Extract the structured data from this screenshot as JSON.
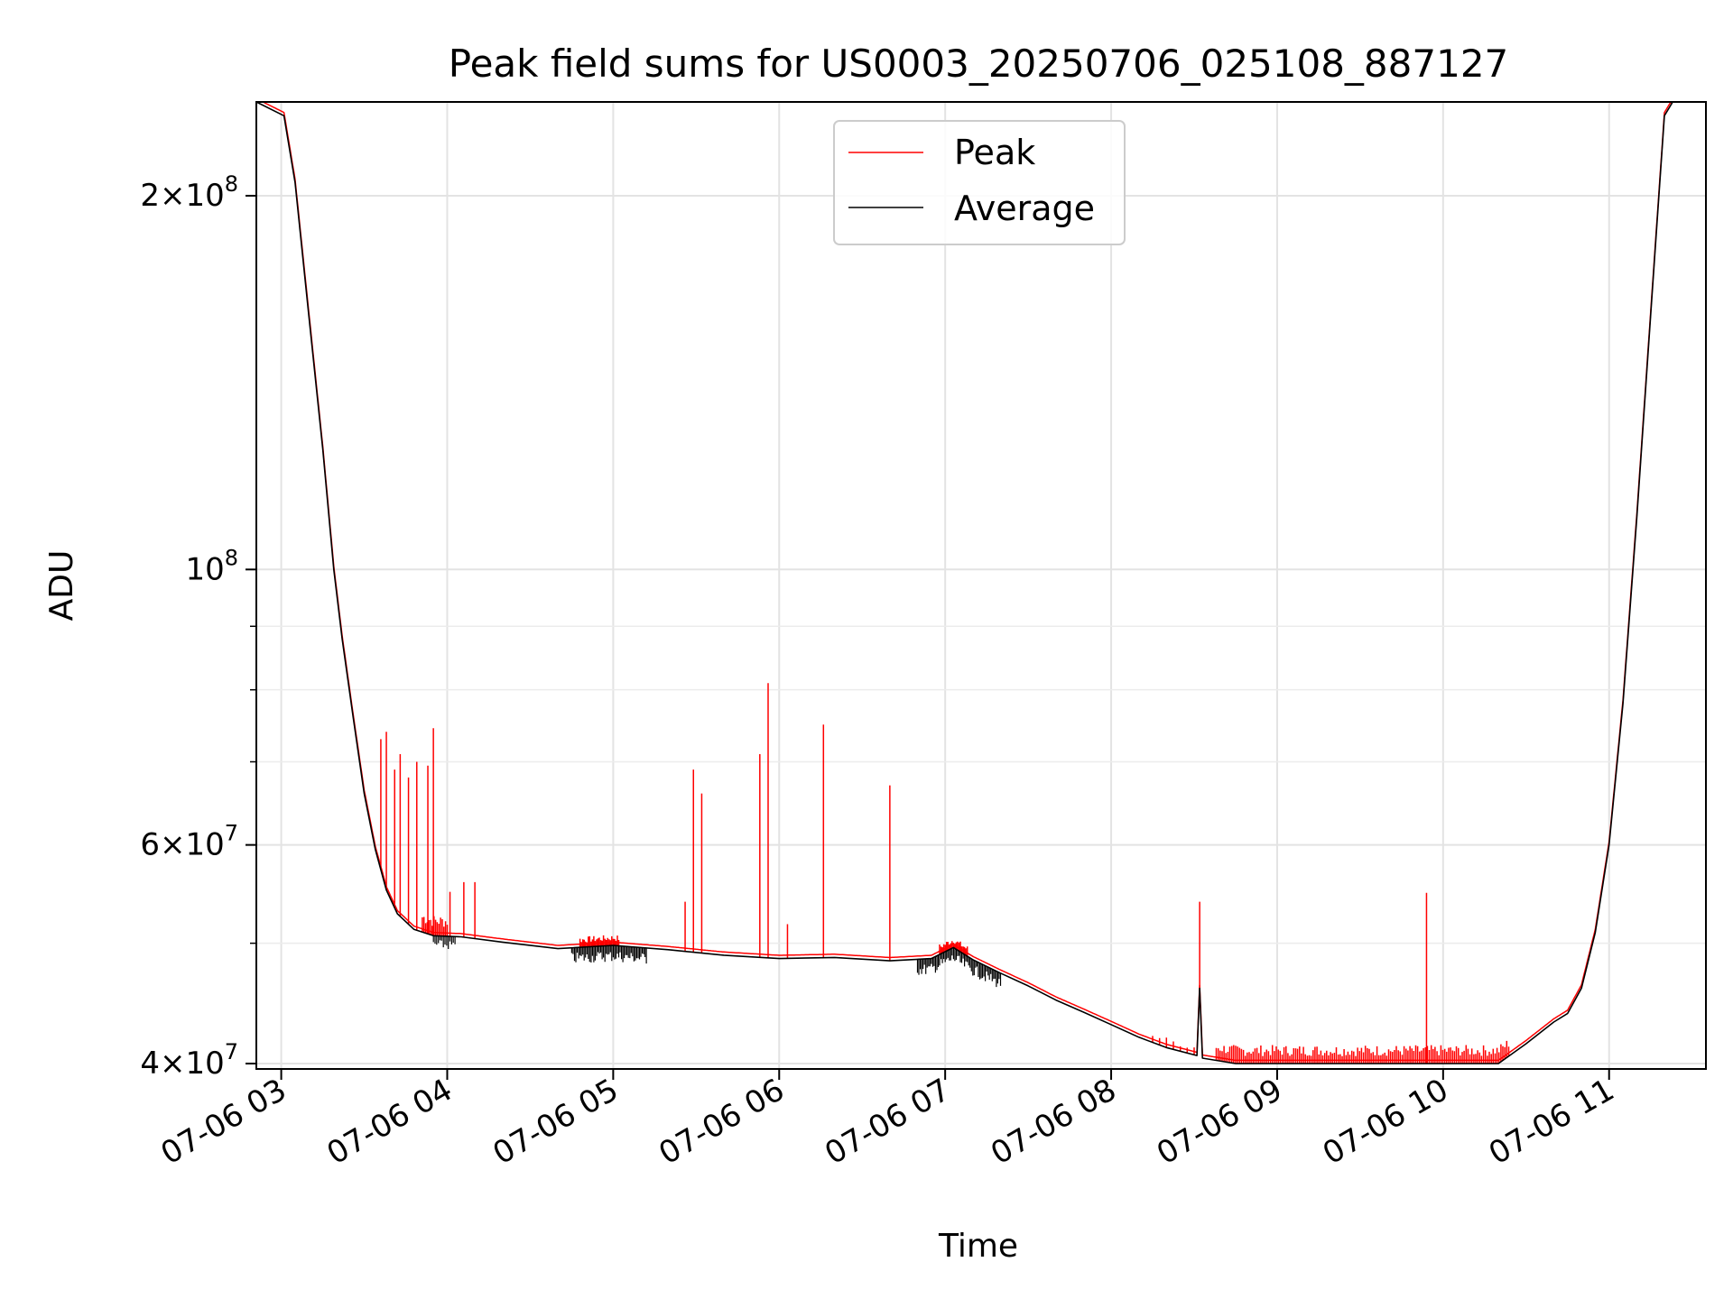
{
  "chart_data": {
    "type": "line",
    "title": "Peak field sums for US0003_20250706_025108_887127",
    "xlabel": "Time",
    "ylabel": "ADU",
    "yscale": "log",
    "xlim": [
      "07-06 02:51",
      "07-06 11:35"
    ],
    "ylim": [
      39600000,
      238000000
    ],
    "grid": true,
    "legend": {
      "placement": "upper-center",
      "entries": [
        {
          "label": "Peak",
          "color": "#ff0000"
        },
        {
          "label": "Average",
          "color": "#000000"
        }
      ]
    },
    "x_ticks": [
      {
        "value": "07-06 03:00",
        "label": "07-06 03"
      },
      {
        "value": "07-06 04:00",
        "label": "07-06 04"
      },
      {
        "value": "07-06 05:00",
        "label": "07-06 05"
      },
      {
        "value": "07-06 06:00",
        "label": "07-06 06"
      },
      {
        "value": "07-06 07:00",
        "label": "07-06 07"
      },
      {
        "value": "07-06 08:00",
        "label": "07-06 08"
      },
      {
        "value": "07-06 09:00",
        "label": "07-06 09"
      },
      {
        "value": "07-06 10:00",
        "label": "07-06 10"
      },
      {
        "value": "07-06 11:00",
        "label": "07-06 11"
      }
    ],
    "y_major_ticks": [
      {
        "value": 40000000,
        "mantissa": "4",
        "exponent": "7"
      },
      {
        "value": 60000000,
        "mantissa": "6",
        "exponent": "7"
      },
      {
        "value": 100000000,
        "mantissa": "",
        "exponent": "8"
      },
      {
        "value": 200000000,
        "mantissa": "2",
        "exponent": "8"
      }
    ],
    "y_minor_ticks": [
      50000000,
      70000000,
      80000000,
      90000000
    ],
    "series": [
      {
        "name": "Average",
        "color": "#000000",
        "points": [
          [
            "07-06 02:51",
            238000000
          ],
          [
            "07-06 03:01",
            232000000
          ],
          [
            "07-06 03:05",
            205000000
          ],
          [
            "07-06 03:10",
            160000000
          ],
          [
            "07-06 03:15",
            125000000
          ],
          [
            "07-06 03:19",
            100000000
          ],
          [
            "07-06 03:22",
            88000000
          ],
          [
            "07-06 03:26",
            76000000
          ],
          [
            "07-06 03:30",
            66000000
          ],
          [
            "07-06 03:34",
            59500000
          ],
          [
            "07-06 03:38",
            55200000
          ],
          [
            "07-06 03:42",
            52800000
          ],
          [
            "07-06 03:48",
            51300000
          ],
          [
            "07-06 03:55",
            50700000
          ],
          [
            "07-06 04:05",
            50600000
          ],
          [
            "07-06 04:20",
            50100000
          ],
          [
            "07-06 04:40",
            49500000
          ],
          [
            "07-06 05:00",
            49800000
          ],
          [
            "07-06 05:20",
            49400000
          ],
          [
            "07-06 05:40",
            48900000
          ],
          [
            "07-06 06:00",
            48600000
          ],
          [
            "07-06 06:20",
            48700000
          ],
          [
            "07-06 06:40",
            48400000
          ],
          [
            "07-06 06:55",
            48600000
          ],
          [
            "07-06 07:03",
            49600000
          ],
          [
            "07-06 07:10",
            48500000
          ],
          [
            "07-06 07:20",
            47300000
          ],
          [
            "07-06 07:30",
            46200000
          ],
          [
            "07-06 07:40",
            45000000
          ],
          [
            "07-06 07:50",
            44000000
          ],
          [
            "07-06 08:00",
            43000000
          ],
          [
            "07-06 08:10",
            42000000
          ],
          [
            "07-06 08:20",
            41200000
          ],
          [
            "07-06 08:31",
            40600000
          ],
          [
            "07-06 08:32",
            46000000
          ],
          [
            "07-06 08:33",
            40400000
          ],
          [
            "07-06 08:45",
            40000000
          ],
          [
            "07-06 09:30",
            40000000
          ],
          [
            "07-06 10:20",
            40000000
          ],
          [
            "07-06 10:30",
            41500000
          ],
          [
            "07-06 10:40",
            43200000
          ],
          [
            "07-06 10:45",
            43900000
          ],
          [
            "07-06 10:50",
            46000000
          ],
          [
            "07-06 10:55",
            51000000
          ],
          [
            "07-06 11:00",
            60000000
          ],
          [
            "07-06 11:05",
            78000000
          ],
          [
            "07-06 11:10",
            110000000
          ],
          [
            "07-06 11:15",
            160000000
          ],
          [
            "07-06 11:20",
            232000000
          ],
          [
            "07-06 11:23",
            238000000
          ],
          [
            "07-06 11:35",
            238000000
          ]
        ]
      },
      {
        "name": "Peak",
        "color": "#ff0000",
        "spikes": [
          [
            "07-06 03:36",
            73000000
          ],
          [
            "07-06 03:38",
            74000000
          ],
          [
            "07-06 03:41",
            69000000
          ],
          [
            "07-06 03:43",
            71000000
          ],
          [
            "07-06 03:46",
            68000000
          ],
          [
            "07-06 03:49",
            70000000
          ],
          [
            "07-06 03:53",
            69500000
          ],
          [
            "07-06 03:55",
            74500000
          ],
          [
            "07-06 04:01",
            55000000
          ],
          [
            "07-06 04:06",
            56000000
          ],
          [
            "07-06 04:10",
            56000000
          ],
          [
            "07-06 05:26",
            54000000
          ],
          [
            "07-06 05:29",
            69000000
          ],
          [
            "07-06 05:32",
            66000000
          ],
          [
            "07-06 05:53",
            71000000
          ],
          [
            "07-06 05:56",
            81000000
          ],
          [
            "07-06 06:03",
            51800000
          ],
          [
            "07-06 06:16",
            75000000
          ],
          [
            "07-06 06:40",
            67000000
          ],
          [
            "07-06 08:32",
            54000000
          ],
          [
            "07-06 09:54",
            54900000
          ]
        ]
      }
    ]
  }
}
